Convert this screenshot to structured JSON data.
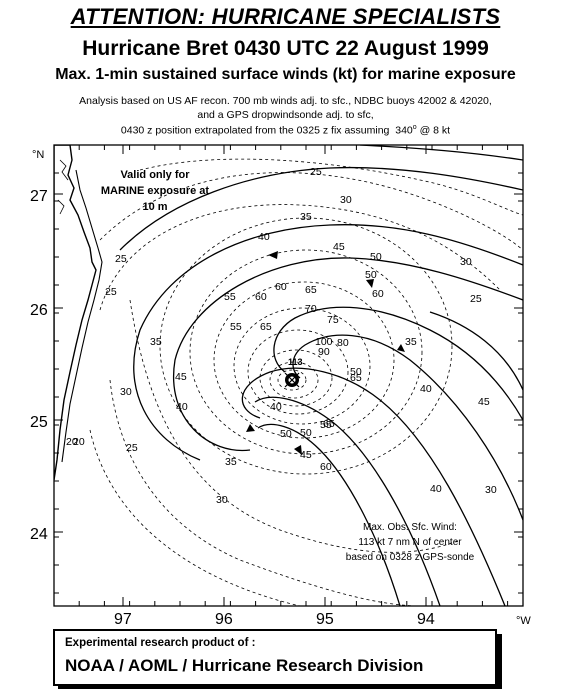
{
  "header": {
    "attention": "ATTENTION: HURRICANE SPECIALISTS",
    "title": "Hurricane Bret 0430 UTC 22 August 1999",
    "subtitle": "Max. 1-min sustained surface winds (kt) for marine exposure",
    "note_1": "Analysis based on US AF recon. 700 mb winds adj. to sfc., NDBC buoys 42002 & 42020,",
    "note_2": "and a GPS dropwindsonde adj. to sfc,",
    "note_3_a": "0430 z position extrapolated from the 0325 z fix assuming",
    "note_3_dir": "340",
    "note_3_deg": "o",
    "note_3_b": "@ 8 kt"
  },
  "map": {
    "lat_unit": "°N",
    "lon_unit": "°W",
    "lat_ticks": [
      "27",
      "26",
      "25",
      "24"
    ],
    "lon_ticks": [
      "97",
      "96",
      "95",
      "94"
    ],
    "valid_note": [
      "Valid only for",
      "MARINE exposure at",
      "10 m"
    ],
    "obs_note": [
      "Max. Obs. Sfc. Wind:",
      "113 kt  7 nm N of center",
      "based on 0328 z GPS-sonde"
    ],
    "max_wind_label": "113",
    "contour_labels": [
      "25",
      "30",
      "35",
      "40",
      "45",
      "50",
      "55",
      "60",
      "65",
      "70",
      "75",
      "80",
      "90",
      "100",
      "20",
      "25",
      "30",
      "35",
      "40",
      "45",
      "50",
      "55",
      "60",
      "65",
      "25",
      "20",
      "25",
      "30",
      "35",
      "40",
      "45",
      "50",
      "55",
      "60",
      "65",
      "50",
      "40",
      "30",
      "25",
      "30",
      "35",
      "40",
      "45",
      "50",
      "60",
      "65"
    ]
  },
  "footer": {
    "line1": "Experimental research product of :",
    "line2": "NOAA / AOML / Hurricane Research Division"
  }
}
